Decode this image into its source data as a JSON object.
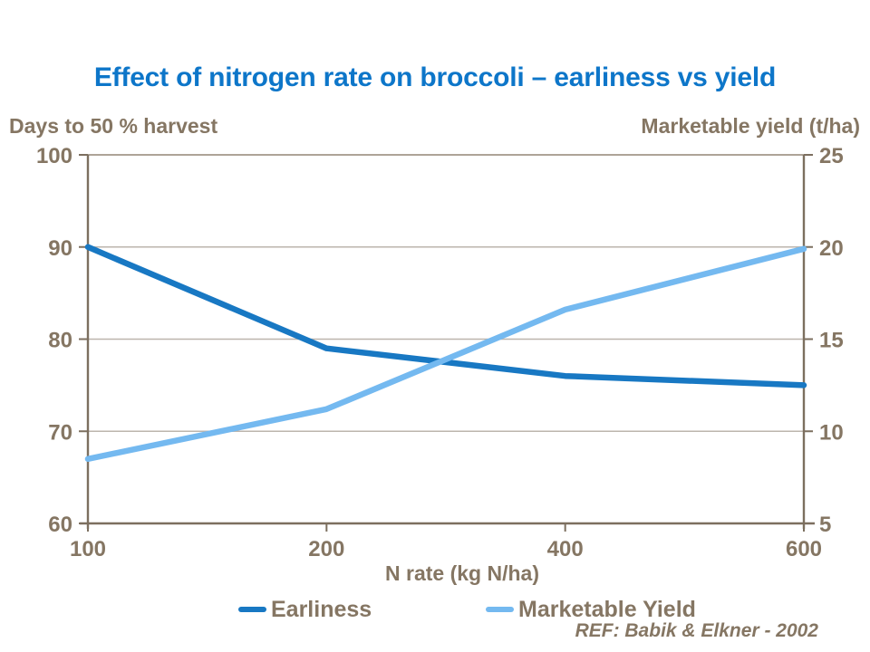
{
  "colors": {
    "title": "#0d76c9",
    "text": "#857663",
    "axis": "#7c6f5f",
    "grid": "#bcb5ad",
    "top_border": "#a2978a",
    "earliness": "#1878c3",
    "marketable_yield": "#74b9f0"
  },
  "chart_data": {
    "type": "line",
    "title": "Effect of nitrogen rate on broccoli – earliness vs yield",
    "x_categories": [
      "100",
      "200",
      "400",
      "600"
    ],
    "xlabel": "N rate (kg N/ha)",
    "grid": true,
    "legend_position": "bottom",
    "axes": {
      "left": {
        "label": "Days to 50 % harvest",
        "range": [
          60,
          100
        ],
        "ticks": [
          "100",
          "90",
          "80",
          "70",
          "60"
        ],
        "tick_values": [
          100,
          90,
          80,
          70,
          60
        ]
      },
      "right": {
        "label": "Marketable yield (t/ha)",
        "range": [
          5,
          25
        ],
        "ticks": [
          "25",
          "20",
          "15",
          "10",
          "5"
        ],
        "tick_values": [
          25,
          20,
          15,
          10,
          5
        ]
      }
    },
    "series": [
      {
        "name": "Earliness",
        "axis": "left",
        "color": "#1878c3",
        "values": [
          90,
          79,
          76,
          75
        ]
      },
      {
        "name": "Marketable Yield",
        "axis": "right",
        "color": "#74b9f0",
        "values": [
          8.5,
          11.2,
          16.6,
          19.9
        ]
      }
    ],
    "note": "REF: Babik & Elkner - 2002"
  }
}
